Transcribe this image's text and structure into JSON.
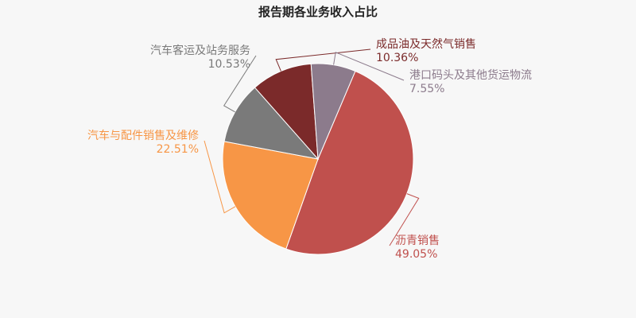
{
  "chart_data": {
    "type": "pie",
    "title": "报告期各业务收入占比",
    "slices": [
      {
        "name": "沥青销售",
        "value": 49.05,
        "label": "49.05%",
        "color": "#c0504d"
      },
      {
        "name": "汽车与配件销售及维修",
        "value": 22.51,
        "label": "22.51%",
        "color": "#f79646"
      },
      {
        "name": "汽车客运及站务服务",
        "value": 10.53,
        "label": "10.53%",
        "color": "#7a7a7a"
      },
      {
        "name": "成品油及天然气销售",
        "value": 10.36,
        "label": "10.36%",
        "color": "#7b2a2a"
      },
      {
        "name": "港口码头及其他货运物流",
        "value": 7.55,
        "label": "7.55%",
        "color": "#8c7b8c"
      }
    ],
    "legend": "none"
  }
}
